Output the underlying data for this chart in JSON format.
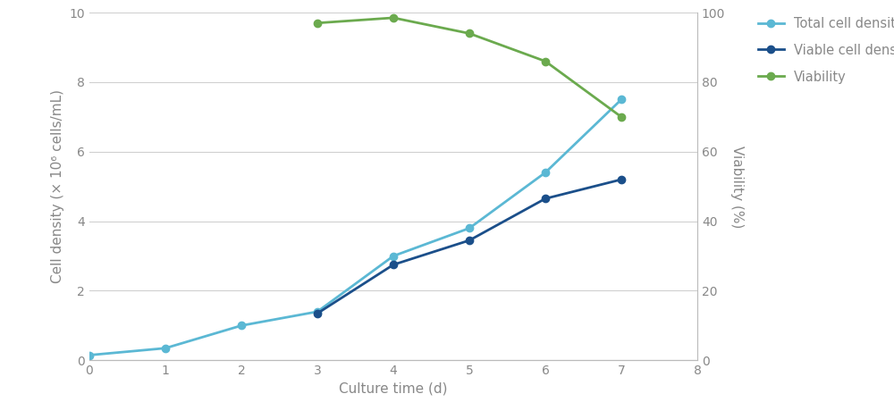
{
  "x_total": [
    0,
    1,
    2,
    3,
    4,
    5,
    6,
    7
  ],
  "total_cell_density": [
    0.15,
    0.35,
    1.0,
    1.4,
    3.0,
    3.8,
    5.4,
    7.5
  ],
  "x_viable": [
    3,
    4,
    5,
    6,
    7
  ],
  "viable_cell_density": [
    1.35,
    2.75,
    3.45,
    4.65,
    5.2
  ],
  "x_viability": [
    3,
    4,
    5,
    6,
    7
  ],
  "viability": [
    97,
    98.5,
    94,
    86,
    70
  ],
  "total_cell_color": "#5BB8D4",
  "viable_cell_color": "#1B4F8A",
  "viability_color": "#6BAA4E",
  "xlabel": "Culture time (d)",
  "ylabel_left": "Cell density (× 10⁶ cells/mL)",
  "ylabel_right": "Viability (%)",
  "xlim": [
    0,
    8
  ],
  "ylim_left": [
    0,
    10
  ],
  "ylim_right": [
    0,
    100
  ],
  "xticks": [
    0,
    1,
    2,
    3,
    4,
    5,
    6,
    7,
    8
  ],
  "yticks_left": [
    0,
    2,
    4,
    6,
    8,
    10
  ],
  "yticks_right": [
    0,
    20,
    40,
    60,
    80,
    100
  ],
  "legend_labels": [
    "Total cell density",
    "Viable cell density",
    "Viability"
  ],
  "marker": "o",
  "markersize": 6,
  "linewidth": 2,
  "background_color": "#ffffff",
  "grid_color": "#d0d0d0",
  "tick_color": "#888888",
  "label_color": "#888888",
  "spine_color": "#bbbbbb"
}
